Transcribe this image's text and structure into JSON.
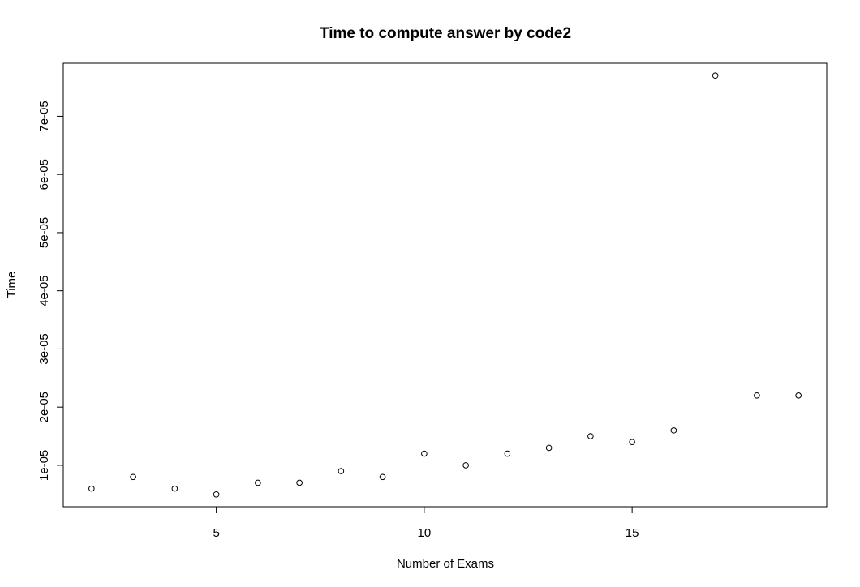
{
  "chart_data": {
    "type": "scatter",
    "title": "Time to compute answer by code2",
    "xlabel": "Number of Exams",
    "ylabel": "Time",
    "x": [
      2,
      3,
      4,
      5,
      6,
      7,
      8,
      9,
      10,
      11,
      12,
      13,
      14,
      15,
      16,
      17,
      18,
      19
    ],
    "y": [
      6e-06,
      8e-06,
      6e-06,
      5e-06,
      7e-06,
      7e-06,
      9e-06,
      8e-06,
      1.2e-05,
      1e-05,
      1.2e-05,
      1.3e-05,
      1.5e-05,
      1.4e-05,
      1.6e-05,
      7.7e-05,
      2.2e-05,
      2.2e-05
    ],
    "xlim": [
      1.32,
      19.68
    ],
    "ylim": [
      2.88e-06,
      7.912e-05
    ],
    "x_ticks": [
      5,
      10,
      15
    ],
    "x_tick_labels": [
      "5",
      "10",
      "15"
    ],
    "y_ticks": [
      1e-05,
      2e-05,
      3e-05,
      4e-05,
      5e-05,
      6e-05,
      7e-05
    ],
    "y_tick_labels": [
      "1e-05",
      "2e-05",
      "3e-05",
      "4e-05",
      "5e-05",
      "6e-05",
      "7e-05"
    ],
    "grid": false,
    "marker": "open-circle",
    "colors": {
      "marker": "#000000",
      "axis": "#000000",
      "background": "#ffffff"
    }
  }
}
